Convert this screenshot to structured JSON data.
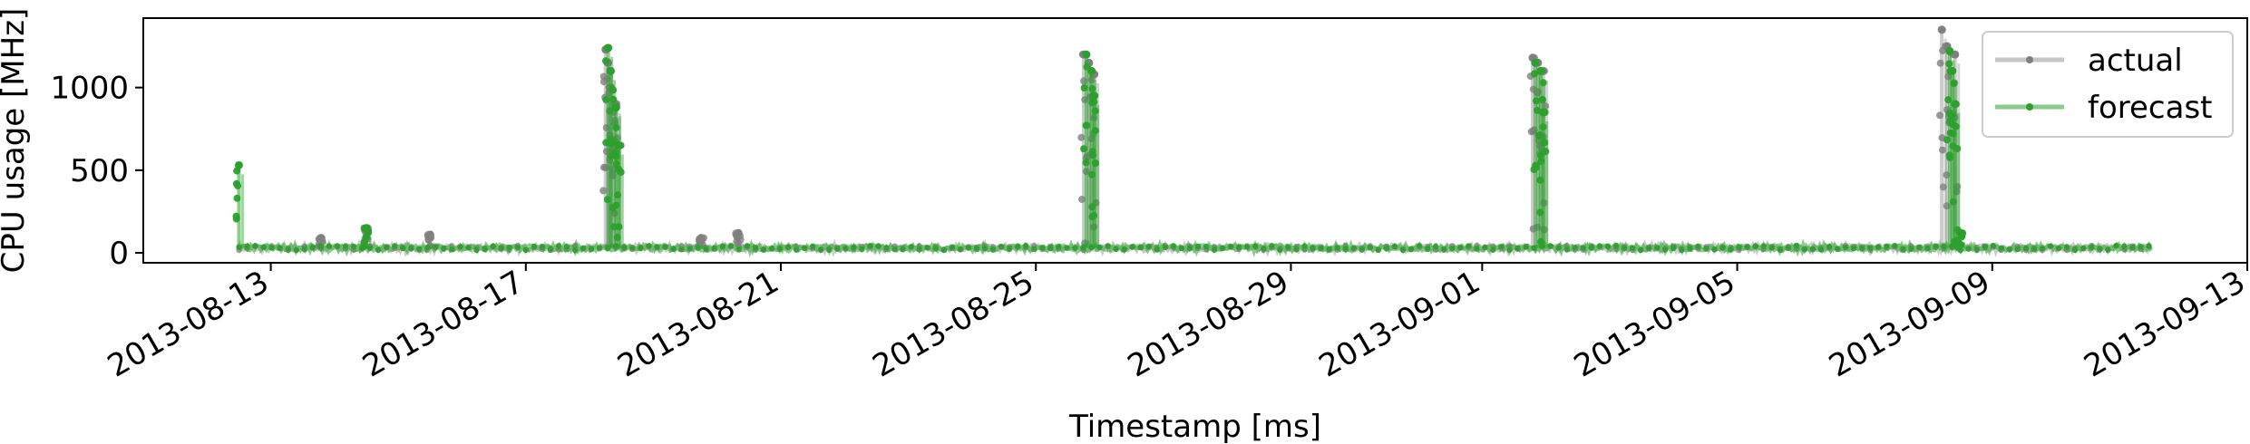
{
  "chart_data": {
    "type": "line",
    "title": "",
    "xlabel": "Timestamp [ms]",
    "ylabel": "CPU usage [MHz]",
    "xlim": [
      "2013-08-11T00:00:00",
      "2013-09-13T00:00:00"
    ],
    "ylim": [
      -60,
      1420
    ],
    "x_ticks": [
      "2013-08-13",
      "2013-08-17",
      "2013-08-21",
      "2013-08-25",
      "2013-08-29",
      "2013-09-01",
      "2013-09-05",
      "2013-09-09",
      "2013-09-13"
    ],
    "y_ticks": [
      0,
      500,
      1000
    ],
    "grid": false,
    "legend_position": "top-right",
    "colors": {
      "actual": "#808080",
      "forecast": "#2ca02c"
    },
    "series": [
      {
        "name": "actual",
        "baseline": 30,
        "x_range": [
          "2013-08-12T12:00:00",
          "2013-09-11T12:00:00"
        ],
        "spikes": [
          {
            "x": "2013-08-13T19:00:00",
            "y": 90
          },
          {
            "x": "2013-08-14T12:00:00",
            "y": 150
          },
          {
            "x": "2013-08-15T12:00:00",
            "y": 110
          },
          {
            "x": "2013-08-18T06:00:00",
            "y": 1230
          },
          {
            "x": "2013-08-18T07:00:00",
            "y": 1150
          },
          {
            "x": "2013-08-18T08:00:00",
            "y": 1000
          },
          {
            "x": "2013-08-18T10:00:00",
            "y": 900
          },
          {
            "x": "2013-08-19T18:00:00",
            "y": 90
          },
          {
            "x": "2013-08-20T08:00:00",
            "y": 120
          },
          {
            "x": "2013-08-25T18:00:00",
            "y": 1200
          },
          {
            "x": "2013-08-25T20:00:00",
            "y": 1150
          },
          {
            "x": "2013-08-25T22:00:00",
            "y": 1080
          },
          {
            "x": "2013-09-01T19:00:00",
            "y": 1180
          },
          {
            "x": "2013-09-01T21:00:00",
            "y": 1150
          },
          {
            "x": "2013-09-01T23:00:00",
            "y": 1100
          },
          {
            "x": "2013-09-08T05:00:00",
            "y": 1350
          },
          {
            "x": "2013-09-08T07:00:00",
            "y": 1250
          },
          {
            "x": "2013-09-08T10:00:00",
            "y": 1200
          }
        ]
      },
      {
        "name": "forecast",
        "baseline": 30,
        "x_range": [
          "2013-08-12T12:00:00",
          "2013-09-11T12:00:00"
        ],
        "spikes": [
          {
            "x": "2013-08-12T12:00:00",
            "y": 530
          },
          {
            "x": "2013-08-14T12:00:00",
            "y": 150
          },
          {
            "x": "2013-08-18T07:00:00",
            "y": 1240
          },
          {
            "x": "2013-08-18T08:00:00",
            "y": 1100
          },
          {
            "x": "2013-08-18T10:00:00",
            "y": 880
          },
          {
            "x": "2013-08-18T11:00:00",
            "y": 650
          },
          {
            "x": "2013-08-25T19:00:00",
            "y": 1200
          },
          {
            "x": "2013-08-25T21:00:00",
            "y": 1100
          },
          {
            "x": "2013-08-25T22:00:00",
            "y": 950
          },
          {
            "x": "2013-09-01T20:00:00",
            "y": 1150
          },
          {
            "x": "2013-09-01T22:00:00",
            "y": 1100
          },
          {
            "x": "2013-09-01T23:00:00",
            "y": 850
          },
          {
            "x": "2013-09-08T08:00:00",
            "y": 1220
          },
          {
            "x": "2013-09-08T09:00:00",
            "y": 1100
          },
          {
            "x": "2013-09-08T10:00:00",
            "y": 900
          },
          {
            "x": "2013-09-08T12:00:00",
            "y": 120
          }
        ]
      }
    ]
  }
}
